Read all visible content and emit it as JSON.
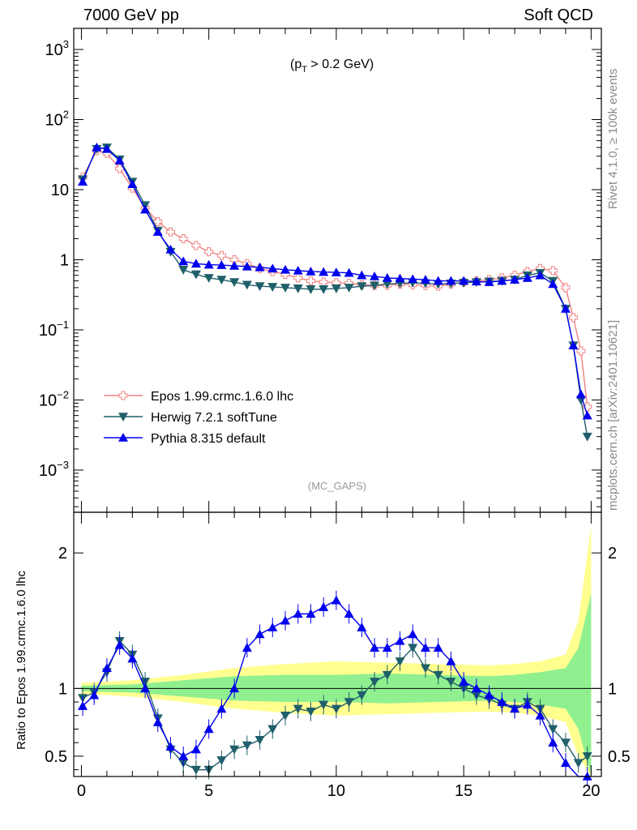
{
  "header": {
    "left": "7000 GeV pp",
    "right": "Soft QCD"
  },
  "side": {
    "rivet": "Rivet 4.1.0, ≥ 100k events",
    "mcplots": "mcplots.cern.ch [arXiv:2401.10621]"
  },
  "annotation": {
    "pt_prefix": "(p",
    "pt_sub": "T",
    "pt_suffix": " > 0.2 GeV)",
    "mc_tag": "(MC_GAPS)"
  },
  "ratio_ylabel": "Ratio to Epos 1.99.crmc.1.6.0 lhc",
  "colors": {
    "epos": "#f08080",
    "herwig": "#1f5f6a",
    "pythia": "#0000ee",
    "band_inner": "#90f090",
    "band_outer": "#ffff90"
  },
  "chart_data": [
    {
      "type": "line",
      "panel": "main",
      "yscale": "log",
      "xlim": [
        -0.3,
        20.4
      ],
      "ylim": [
        0.00025,
        2000
      ],
      "ytick_labels": [
        "10^-3",
        "10^-2",
        "10^-1",
        "1",
        "10",
        "10^2",
        "10^3"
      ],
      "legend_position": "lower-left",
      "series": [
        {
          "name": "Epos 1.99.crmc.1.6.0 lhc",
          "marker": "open-cross",
          "x": [
            0.05,
            0.6,
            1.0,
            1.5,
            2.0,
            2.5,
            3.0,
            3.5,
            4.0,
            4.5,
            5.0,
            5.5,
            6.0,
            6.5,
            7.0,
            7.5,
            8.0,
            8.5,
            9.0,
            9.5,
            10.0,
            10.5,
            11.0,
            11.5,
            12.0,
            12.5,
            13.0,
            13.5,
            14.0,
            14.5,
            15.0,
            15.5,
            16.0,
            16.5,
            17.0,
            17.5,
            18.0,
            18.5,
            19.0,
            19.3,
            19.6,
            19.85
          ],
          "y": [
            15,
            36,
            33,
            20,
            10.5,
            5.5,
            3.5,
            2.5,
            2.0,
            1.6,
            1.3,
            1.15,
            1.0,
            0.88,
            0.75,
            0.68,
            0.62,
            0.55,
            0.5,
            0.48,
            0.47,
            0.46,
            0.44,
            0.43,
            0.43,
            0.45,
            0.44,
            0.43,
            0.42,
            0.45,
            0.48,
            0.5,
            0.52,
            0.55,
            0.6,
            0.68,
            0.75,
            0.7,
            0.4,
            0.15,
            0.05,
            0.008
          ]
        },
        {
          "name": "Herwig 7.2.1 softTune",
          "marker": "triangle-down",
          "x": [
            0.05,
            0.6,
            1.0,
            1.5,
            2.0,
            2.5,
            3.0,
            3.5,
            4.0,
            4.5,
            5.0,
            5.5,
            6.0,
            6.5,
            7.0,
            7.5,
            8.0,
            8.5,
            9.0,
            9.5,
            10.0,
            10.5,
            11.0,
            11.5,
            12.0,
            12.5,
            13.0,
            13.5,
            14.0,
            14.5,
            15.0,
            15.5,
            16.0,
            16.5,
            17.0,
            17.5,
            18.0,
            18.5,
            19.0,
            19.3,
            19.6,
            19.85
          ],
          "y": [
            14,
            38,
            40,
            27,
            13,
            6,
            2.6,
            1.3,
            0.72,
            0.62,
            0.55,
            0.52,
            0.48,
            0.44,
            0.42,
            0.41,
            0.4,
            0.39,
            0.38,
            0.38,
            0.39,
            0.4,
            0.42,
            0.43,
            0.45,
            0.46,
            0.47,
            0.46,
            0.45,
            0.46,
            0.47,
            0.48,
            0.49,
            0.5,
            0.52,
            0.6,
            0.65,
            0.5,
            0.2,
            0.06,
            0.01,
            0.003
          ]
        },
        {
          "name": "Pythia 8.315 default",
          "marker": "triangle-up",
          "x": [
            0.05,
            0.6,
            1.0,
            1.5,
            2.0,
            2.5,
            3.0,
            3.5,
            4.0,
            4.5,
            5.0,
            5.5,
            6.0,
            6.5,
            7.0,
            7.5,
            8.0,
            8.5,
            9.0,
            9.5,
            10.0,
            10.5,
            11.0,
            11.5,
            12.0,
            12.5,
            13.0,
            13.5,
            14.0,
            14.5,
            15.0,
            15.5,
            16.0,
            16.5,
            17.0,
            17.5,
            18.0,
            18.5,
            19.0,
            19.3,
            19.6,
            19.85
          ],
          "y": [
            13,
            40,
            38,
            26,
            12,
            5.2,
            2.5,
            1.4,
            0.95,
            0.88,
            0.85,
            0.84,
            0.82,
            0.8,
            0.78,
            0.75,
            0.72,
            0.7,
            0.68,
            0.67,
            0.66,
            0.65,
            0.6,
            0.58,
            0.55,
            0.54,
            0.53,
            0.52,
            0.5,
            0.5,
            0.5,
            0.49,
            0.48,
            0.5,
            0.52,
            0.55,
            0.6,
            0.45,
            0.2,
            0.06,
            0.012,
            0.006
          ]
        }
      ]
    },
    {
      "type": "line",
      "panel": "ratio",
      "title": "",
      "xlabel": "",
      "ylabel": "Ratio to Epos 1.99.crmc.1.6.0 lhc",
      "xlim": [
        -0.3,
        20.4
      ],
      "ylim": [
        0.35,
        2.3
      ],
      "xtick_labels": [
        "0",
        "5",
        "10",
        "15",
        "20"
      ],
      "ytick_labels": [
        "0.5",
        "1",
        "2"
      ],
      "band": {
        "x": [
          0,
          2,
          4,
          6,
          8,
          10,
          12,
          14,
          16,
          17,
          18,
          19,
          19.5,
          20
        ],
        "inner": [
          0.02,
          0.03,
          0.06,
          0.09,
          0.1,
          0.1,
          0.11,
          0.1,
          0.09,
          0.1,
          0.12,
          0.15,
          0.3,
          0.7
        ],
        "outer": [
          0.04,
          0.06,
          0.1,
          0.15,
          0.18,
          0.2,
          0.19,
          0.18,
          0.17,
          0.18,
          0.2,
          0.25,
          0.5,
          1.2
        ]
      },
      "series": [
        {
          "name": "Herwig 7.2.1 softTune",
          "x": [
            0.05,
            0.5,
            1.0,
            1.5,
            2.0,
            2.5,
            3.0,
            3.5,
            4.0,
            4.5,
            5.0,
            5.5,
            6.0,
            6.5,
            7.0,
            7.5,
            8.0,
            8.5,
            9.0,
            9.5,
            10.0,
            10.5,
            11.0,
            11.5,
            12.0,
            12.5,
            13.0,
            13.5,
            14.0,
            14.5,
            15.0,
            15.5,
            16.0,
            16.5,
            17.0,
            17.5,
            18.0,
            18.5,
            19.0,
            19.5,
            19.85
          ],
          "y": [
            0.93,
            0.97,
            1.12,
            1.35,
            1.25,
            1.05,
            0.78,
            0.55,
            0.45,
            0.4,
            0.4,
            0.47,
            0.55,
            0.58,
            0.62,
            0.7,
            0.8,
            0.85,
            0.83,
            0.88,
            0.85,
            0.9,
            0.95,
            1.05,
            1.1,
            1.2,
            1.3,
            1.15,
            1.1,
            1.05,
            1.0,
            0.95,
            0.92,
            0.88,
            0.85,
            0.9,
            0.85,
            0.7,
            0.6,
            0.45,
            0.5
          ]
        },
        {
          "name": "Pythia 8.315 default",
          "x": [
            0.05,
            0.5,
            1.0,
            1.5,
            2.0,
            2.5,
            3.0,
            3.5,
            4.0,
            4.5,
            5.0,
            5.5,
            6.0,
            6.5,
            7.0,
            7.5,
            8.0,
            8.5,
            9.0,
            9.5,
            10.0,
            10.5,
            11.0,
            11.5,
            12.0,
            12.5,
            13.0,
            13.5,
            14.0,
            14.5,
            15.0,
            15.5,
            16.0,
            16.5,
            17.0,
            17.5,
            18.0,
            18.5,
            19.0,
            19.5,
            19.85
          ],
          "y": [
            0.87,
            0.95,
            1.15,
            1.32,
            1.22,
            1.0,
            0.75,
            0.57,
            0.5,
            0.55,
            0.7,
            0.85,
            1.0,
            1.3,
            1.4,
            1.45,
            1.5,
            1.55,
            1.55,
            1.6,
            1.65,
            1.55,
            1.45,
            1.3,
            1.3,
            1.35,
            1.4,
            1.3,
            1.3,
            1.2,
            1.05,
            1.0,
            0.95,
            0.9,
            0.85,
            0.88,
            0.8,
            0.6,
            0.45,
            0.3,
            0.35
          ]
        }
      ]
    }
  ]
}
